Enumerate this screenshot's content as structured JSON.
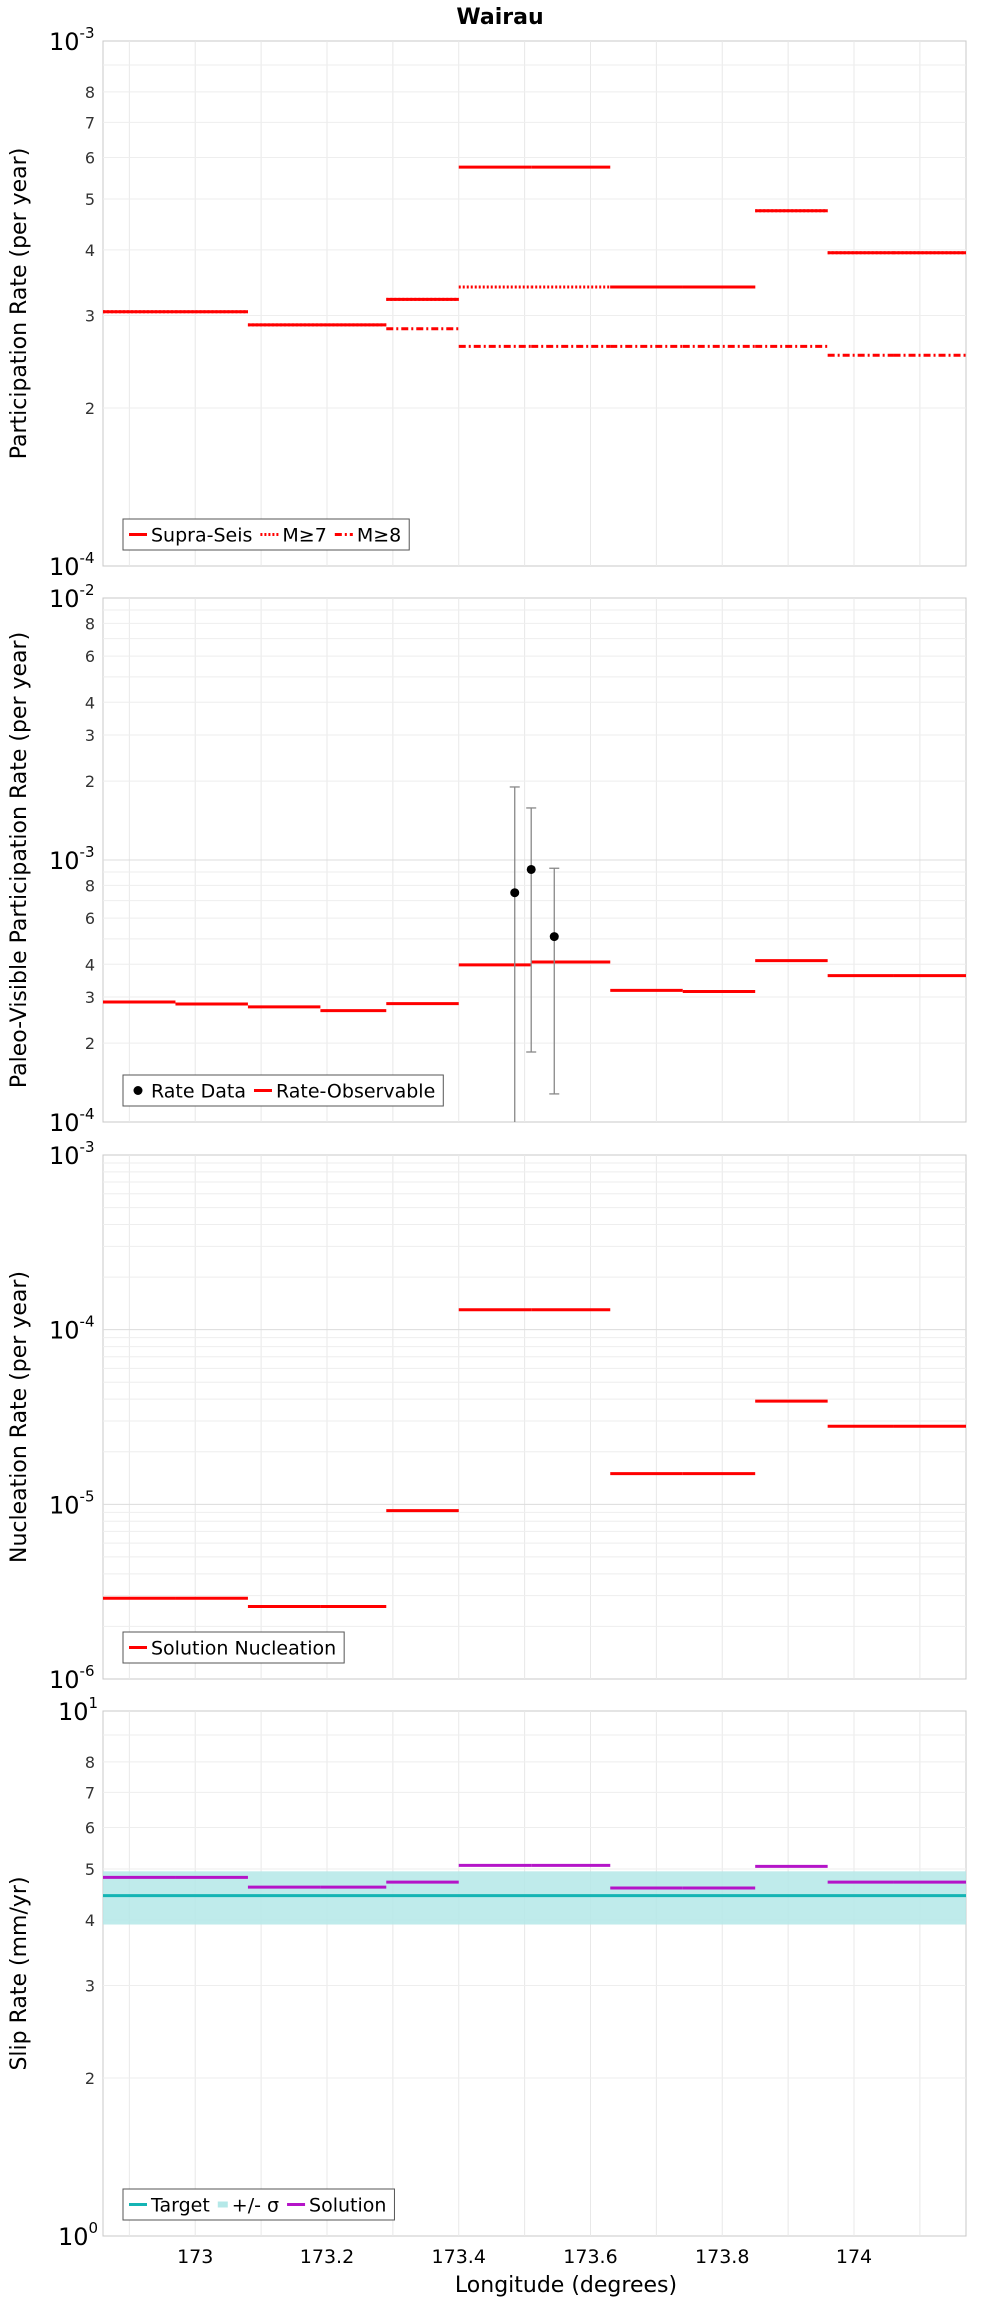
{
  "chart_data": [
    {
      "type": "line",
      "title": "Wairau",
      "ylabel": "Participation Rate (per year)",
      "xlabel": "",
      "scale": "log",
      "xlim": [
        172.86,
        174.17
      ],
      "ylim": [
        0.0001,
        0.001
      ],
      "major_ticks": [
        {
          "mantissa": "10",
          "exp": "-4",
          "value": 0.0001
        },
        {
          "mantissa": "10",
          "exp": "-3",
          "value": 0.001
        }
      ],
      "minor_ticks": [
        {
          "label": "2",
          "value": 0.0002
        },
        {
          "label": "3",
          "value": 0.0003
        },
        {
          "label": "4",
          "value": 0.0004
        },
        {
          "label": "5",
          "value": 0.0005
        },
        {
          "label": "6",
          "value": 0.0006
        },
        {
          "label": "7",
          "value": 0.0007
        },
        {
          "label": "8",
          "value": 0.0008
        }
      ],
      "legend_position": "bottom-left",
      "series": [
        {
          "name": "Supra-Seis",
          "style": "solid",
          "color": "#ff0000",
          "segments": [
            [
              172.86,
              172.97,
              0.000305
            ],
            [
              172.97,
              173.08,
              0.000305
            ],
            [
              173.08,
              173.19,
              0.000288
            ],
            [
              173.19,
              173.29,
              0.000288
            ],
            [
              173.29,
              173.4,
              0.000322
            ],
            [
              173.4,
              173.51,
              0.000575
            ],
            [
              173.51,
              173.63,
              0.000575
            ],
            [
              173.63,
              173.74,
              0.00034
            ],
            [
              173.74,
              173.85,
              0.00034
            ],
            [
              173.85,
              173.96,
              0.000475
            ],
            [
              173.96,
              174.06,
              0.000395
            ],
            [
              174.06,
              174.17,
              0.000395
            ]
          ]
        },
        {
          "name": "M≥7",
          "style": "dotted",
          "color": "#ff0000",
          "segments": [
            [
              172.86,
              172.97,
              0.000305
            ],
            [
              172.97,
              173.08,
              0.000305
            ],
            [
              173.08,
              173.19,
              0.000288
            ],
            [
              173.19,
              173.29,
              0.000288
            ],
            [
              173.29,
              173.4,
              0.000322
            ],
            [
              173.4,
              173.51,
              0.00034
            ],
            [
              173.51,
              173.63,
              0.00034
            ],
            [
              173.63,
              173.74,
              0.00034
            ],
            [
              173.74,
              173.85,
              0.00034
            ],
            [
              173.85,
              173.96,
              0.000475
            ],
            [
              173.96,
              174.06,
              0.000395
            ],
            [
              174.06,
              174.17,
              0.000395
            ]
          ]
        },
        {
          "name": "M≥8",
          "style": "dashdot",
          "color": "#ff0000",
          "segments": [
            [
              173.29,
              173.4,
              0.000283
            ],
            [
              173.4,
              173.51,
              0.000262
            ],
            [
              173.51,
              173.63,
              0.000262
            ],
            [
              173.63,
              173.74,
              0.000262
            ],
            [
              173.74,
              173.85,
              0.000262
            ],
            [
              173.85,
              173.96,
              0.000262
            ],
            [
              173.96,
              174.06,
              0.000252
            ],
            [
              174.06,
              174.17,
              0.000252
            ]
          ]
        }
      ]
    },
    {
      "type": "line",
      "title": "",
      "ylabel": "Paleo-Visible Participation Rate (per year)",
      "xlabel": "",
      "scale": "log",
      "xlim": [
        172.86,
        174.17
      ],
      "ylim": [
        0.0001,
        0.01
      ],
      "major_ticks": [
        {
          "mantissa": "10",
          "exp": "-4",
          "value": 0.0001
        },
        {
          "mantissa": "10",
          "exp": "-3",
          "value": 0.001
        },
        {
          "mantissa": "10",
          "exp": "-2",
          "value": 0.01
        }
      ],
      "minor_ticks": [
        {
          "label": "2",
          "value": 0.0002
        },
        {
          "label": "3",
          "value": 0.0003
        },
        {
          "label": "4",
          "value": 0.0004
        },
        {
          "label": "6",
          "value": 0.0006
        },
        {
          "label": "8",
          "value": 0.0008
        },
        {
          "label": "2",
          "value": 0.002
        },
        {
          "label": "3",
          "value": 0.003
        },
        {
          "label": "4",
          "value": 0.004
        },
        {
          "label": "6",
          "value": 0.006
        },
        {
          "label": "8",
          "value": 0.008
        }
      ],
      "legend_position": "bottom-left",
      "points": {
        "name": "Rate Data",
        "color": "#000000",
        "items": [
          {
            "x": 173.485,
            "y": 0.00075,
            "low": 0.0001,
            "high": 0.0019
          },
          {
            "x": 173.51,
            "y": 0.00092,
            "low": 0.000185,
            "high": 0.00158
          },
          {
            "x": 173.545,
            "y": 0.00051,
            "low": 0.000128,
            "high": 0.00093
          }
        ]
      },
      "series": [
        {
          "name": "Rate-Observable",
          "style": "solid",
          "color": "#ff0000",
          "segments": [
            [
              172.86,
              172.97,
              0.000287
            ],
            [
              172.97,
              173.08,
              0.000282
            ],
            [
              173.08,
              173.19,
              0.000275
            ],
            [
              173.19,
              173.29,
              0.000266
            ],
            [
              173.29,
              173.4,
              0.000283
            ],
            [
              173.4,
              173.51,
              0.000398
            ],
            [
              173.51,
              173.63,
              0.000408
            ],
            [
              173.63,
              173.74,
              0.000318
            ],
            [
              173.74,
              173.85,
              0.000315
            ],
            [
              173.85,
              173.96,
              0.000413
            ],
            [
              173.96,
              174.06,
              0.000362
            ],
            [
              174.06,
              174.17,
              0.000362
            ]
          ]
        }
      ]
    },
    {
      "type": "line",
      "title": "",
      "ylabel": "Nucleation Rate (per year)",
      "xlabel": "",
      "scale": "log",
      "xlim": [
        172.86,
        174.17
      ],
      "ylim": [
        1e-06,
        0.001
      ],
      "major_ticks": [
        {
          "mantissa": "10",
          "exp": "-6",
          "value": 1e-06
        },
        {
          "mantissa": "10",
          "exp": "-5",
          "value": 1e-05
        },
        {
          "mantissa": "10",
          "exp": "-4",
          "value": 0.0001
        },
        {
          "mantissa": "10",
          "exp": "-3",
          "value": 0.001
        }
      ],
      "minor_ticks": [],
      "legend_position": "bottom-left",
      "series": [
        {
          "name": "Solution Nucleation",
          "style": "solid",
          "color": "#ff0000",
          "segments": [
            [
              172.86,
              172.97,
              2.9e-06
            ],
            [
              172.97,
              173.08,
              2.9e-06
            ],
            [
              173.08,
              173.19,
              2.6e-06
            ],
            [
              173.19,
              173.29,
              2.6e-06
            ],
            [
              173.29,
              173.4,
              9.2e-06
            ],
            [
              173.4,
              173.51,
              0.00013
            ],
            [
              173.51,
              173.63,
              0.00013
            ],
            [
              173.63,
              173.74,
              1.5e-05
            ],
            [
              173.74,
              173.85,
              1.5e-05
            ],
            [
              173.85,
              173.96,
              3.9e-05
            ],
            [
              173.96,
              174.06,
              2.8e-05
            ],
            [
              174.06,
              174.17,
              2.8e-05
            ]
          ]
        }
      ]
    },
    {
      "type": "line",
      "title": "",
      "ylabel": "Slip Rate (mm/yr)",
      "xlabel": "Longitude (degrees)",
      "scale": "log",
      "xlim": [
        172.86,
        174.17
      ],
      "ylim": [
        1,
        10
      ],
      "major_ticks": [
        {
          "mantissa": "10",
          "exp": "0",
          "value": 1
        },
        {
          "mantissa": "10",
          "exp": "1",
          "value": 10
        }
      ],
      "minor_ticks": [
        {
          "label": "2",
          "value": 2
        },
        {
          "label": "3",
          "value": 3
        },
        {
          "label": "4",
          "value": 4
        },
        {
          "label": "5",
          "value": 5
        },
        {
          "label": "6",
          "value": 6
        },
        {
          "label": "7",
          "value": 7
        },
        {
          "label": "8",
          "value": 8
        }
      ],
      "x_ticks": [
        {
          "label": "173",
          "value": 173
        },
        {
          "label": "173.2",
          "value": 173.2
        },
        {
          "label": "173.4",
          "value": 173.4
        },
        {
          "label": "173.6",
          "value": 173.6
        },
        {
          "label": "173.8",
          "value": 173.8
        },
        {
          "label": "174",
          "value": 174
        }
      ],
      "legend_position": "bottom-left",
      "target": {
        "name": "Target",
        "color": "#14b4b4",
        "value": 4.45
      },
      "band": {
        "name": "+/- σ",
        "color": "#b4e8e8",
        "low": 3.92,
        "high": 4.95
      },
      "series": [
        {
          "name": "Solution",
          "style": "solid",
          "color": "#b414c8",
          "segments": [
            [
              172.86,
              172.97,
              4.82
            ],
            [
              172.97,
              173.08,
              4.82
            ],
            [
              173.08,
              173.19,
              4.62
            ],
            [
              173.19,
              173.29,
              4.62
            ],
            [
              173.29,
              173.4,
              4.72
            ],
            [
              173.4,
              173.51,
              5.08
            ],
            [
              173.51,
              173.63,
              5.08
            ],
            [
              173.63,
              173.74,
              4.6
            ],
            [
              173.74,
              173.85,
              4.6
            ],
            [
              173.85,
              173.96,
              5.06
            ],
            [
              173.96,
              174.06,
              4.72
            ],
            [
              174.06,
              174.17,
              4.72
            ]
          ]
        }
      ]
    }
  ]
}
